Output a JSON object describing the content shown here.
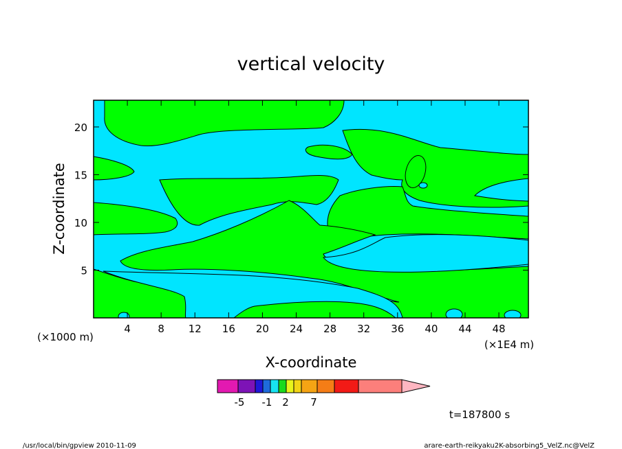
{
  "chart_data": {
    "type": "heatmap",
    "title": "vertical velocity",
    "xlabel": "X-coordinate",
    "ylabel": "Z-coordinate",
    "x_units_note": "(×1000 m)",
    "x_scale_note": "(×1E4 m)",
    "xlim": [
      0,
      51.5
    ],
    "ylim": [
      0,
      22.8
    ],
    "x_ticks": [
      "4",
      "8",
      "12",
      "16",
      "20",
      "24",
      "28",
      "32",
      "36",
      "40",
      "44",
      "48"
    ],
    "y_ticks": [
      "5",
      "10",
      "15",
      "20"
    ],
    "colorbar": {
      "colors": [
        "#e319b1",
        "#7d13b6",
        "#1f17d8",
        "#1e6bdb",
        "#17e3f1",
        "#1bda1d",
        "#e8f51b",
        "#f2d416",
        "#f5a414",
        "#f57d16",
        "#f21a16",
        "#fc7f7b"
      ],
      "labels": [
        "-5",
        "-1",
        "2",
        "7"
      ],
      "extend": "max"
    },
    "field_colors": {
      "positive": "#00ff00",
      "negative": "#00e5ff"
    },
    "annotation_time": "t=187800 s"
  },
  "footer": {
    "left": "/usr/local/bin/gpview   2010-11-09",
    "right": "arare-earth-reikyaku2K-absorbing5_VelZ.nc@VelZ"
  }
}
